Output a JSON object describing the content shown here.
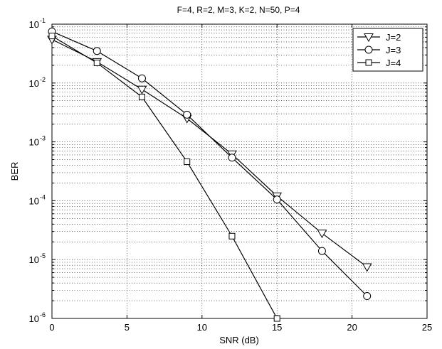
{
  "chart_data": {
    "type": "line",
    "title": "F=4, R=2, M=3, K=2, N=50, P=4",
    "xlabel": "SNR (dB)",
    "ylabel": "BER",
    "xlim": [
      0,
      25
    ],
    "ylim": [
      1e-06,
      0.1
    ],
    "yscale": "log",
    "grid": true,
    "legend_position": "top-right",
    "xticks": [
      0,
      5,
      10,
      15,
      20,
      25
    ],
    "yticks": [
      {
        "value": 1e-06,
        "base": "10",
        "exp": "-6"
      },
      {
        "value": 1e-05,
        "base": "10",
        "exp": "-5"
      },
      {
        "value": 0.0001,
        "base": "10",
        "exp": "-4"
      },
      {
        "value": 0.001,
        "base": "10",
        "exp": "-3"
      },
      {
        "value": 0.01,
        "base": "10",
        "exp": "-2"
      },
      {
        "value": 0.1,
        "base": "10",
        "exp": "-1"
      }
    ],
    "series": [
      {
        "name": "J=2",
        "marker": "triangle-down",
        "x": [
          0,
          3,
          6,
          9,
          12,
          15,
          18,
          21
        ],
        "y": [
          0.055,
          0.023,
          0.0078,
          0.0025,
          0.00062,
          0.00012,
          2.8e-05,
          7.5e-06
        ]
      },
      {
        "name": "J=3",
        "marker": "circle",
        "x": [
          0,
          3,
          6,
          9,
          12,
          15,
          18,
          21
        ],
        "y": [
          0.075,
          0.035,
          0.012,
          0.0029,
          0.00054,
          0.000105,
          1.4e-05,
          2.4e-06
        ]
      },
      {
        "name": "J=4",
        "marker": "square",
        "x": [
          0,
          3,
          6,
          9,
          12,
          15
        ],
        "y": [
          0.063,
          0.022,
          0.0058,
          0.00046,
          2.5e-05,
          1e-06
        ]
      }
    ]
  }
}
